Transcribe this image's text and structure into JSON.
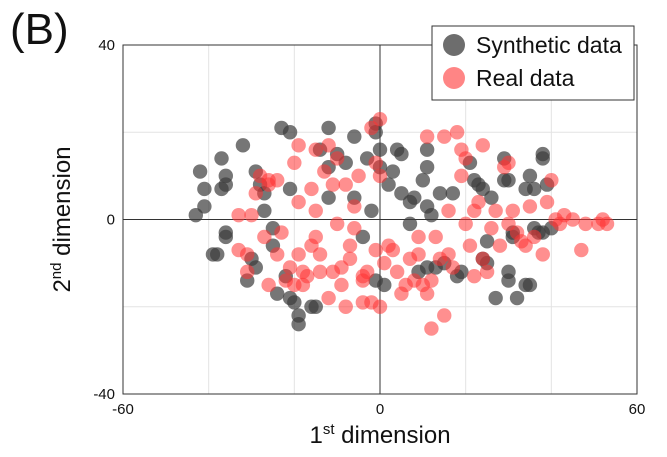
{
  "panel_label": "(B)",
  "chart_data": {
    "type": "scatter",
    "title": "",
    "xlabel": {
      "base": "1",
      "sup": "st",
      "rest": " dimension"
    },
    "ylabel": {
      "base": "2",
      "sup": "nd",
      "rest": " dimension"
    },
    "xlim": [
      -60,
      60
    ],
    "ylim": [
      -40,
      40
    ],
    "xticks": [
      -60,
      0,
      60
    ],
    "yticks": [
      -40,
      0,
      40
    ],
    "grid": true,
    "legend_position": "top-right",
    "series": [
      {
        "name": "Synthetic data",
        "color": "#3c3c3c",
        "opacity": 0.7,
        "points": [
          [
            -42,
            11
          ],
          [
            -41,
            7
          ],
          [
            -43,
            1
          ],
          [
            -41,
            3
          ],
          [
            -39,
            -8
          ],
          [
            -38,
            -8
          ],
          [
            -36,
            -4
          ],
          [
            -36,
            -3
          ],
          [
            -36,
            10
          ],
          [
            -37,
            14
          ],
          [
            -37,
            7
          ],
          [
            -36,
            8
          ],
          [
            -32,
            17
          ],
          [
            -29,
            11
          ],
          [
            -28,
            8
          ],
          [
            -27,
            2
          ],
          [
            -27,
            6
          ],
          [
            -30,
            -9
          ],
          [
            -29,
            -11
          ],
          [
            -31,
            -14
          ],
          [
            -25,
            -2
          ],
          [
            -25,
            -6
          ],
          [
            -24,
            -17
          ],
          [
            -23,
            21
          ],
          [
            -21,
            20
          ],
          [
            -21,
            7
          ],
          [
            -22,
            -13
          ],
          [
            -21,
            -18
          ],
          [
            -20,
            -19
          ],
          [
            -19,
            -22
          ],
          [
            -19,
            -24
          ],
          [
            -16,
            -20
          ],
          [
            -15,
            -20
          ],
          [
            -14,
            16
          ],
          [
            -12,
            21
          ],
          [
            -12,
            12
          ],
          [
            -12,
            5
          ],
          [
            -10,
            15
          ],
          [
            -8,
            13
          ],
          [
            -6,
            19
          ],
          [
            -6,
            5
          ],
          [
            -4,
            -4
          ],
          [
            -3,
            14
          ],
          [
            -2,
            2
          ],
          [
            -1,
            22
          ],
          [
            -1,
            20
          ],
          [
            0,
            12
          ],
          [
            0,
            16
          ],
          [
            -1,
            -14
          ],
          [
            1,
            -15
          ],
          [
            2,
            8
          ],
          [
            3,
            11
          ],
          [
            4,
            16
          ],
          [
            5,
            6
          ],
          [
            5,
            15
          ],
          [
            7,
            4
          ],
          [
            7,
            -1
          ],
          [
            8,
            5
          ],
          [
            9,
            -12
          ],
          [
            10,
            9
          ],
          [
            11,
            16
          ],
          [
            11,
            12
          ],
          [
            11,
            3
          ],
          [
            11,
            -11
          ],
          [
            12,
            1
          ],
          [
            13,
            -11
          ],
          [
            14,
            6
          ],
          [
            15,
            -10
          ],
          [
            17,
            6
          ],
          [
            18,
            -13
          ],
          [
            19,
            -12
          ],
          [
            21,
            13
          ],
          [
            22,
            9
          ],
          [
            23,
            8
          ],
          [
            24,
            7
          ],
          [
            24,
            -9
          ],
          [
            25,
            -10
          ],
          [
            25,
            -5
          ],
          [
            26,
            5
          ],
          [
            27,
            -18
          ],
          [
            29,
            9
          ],
          [
            29,
            14
          ],
          [
            30,
            -12
          ],
          [
            30,
            -14
          ],
          [
            30,
            9
          ],
          [
            31,
            -3
          ],
          [
            31,
            -4
          ],
          [
            32,
            -18
          ],
          [
            34,
            -15
          ],
          [
            34,
            7
          ],
          [
            35,
            10
          ],
          [
            36,
            7
          ],
          [
            36,
            -2
          ],
          [
            37,
            -3
          ],
          [
            38,
            14
          ],
          [
            38,
            15
          ],
          [
            38,
            -3
          ],
          [
            39,
            8
          ],
          [
            40,
            -2
          ],
          [
            35,
            -15
          ]
        ]
      },
      {
        "name": "Real data",
        "color": "#ff3333",
        "opacity": 0.55,
        "points": [
          [
            -33,
            -7
          ],
          [
            -33,
            1
          ],
          [
            -31,
            -8
          ],
          [
            -31,
            -12
          ],
          [
            -30,
            1
          ],
          [
            -29,
            6
          ],
          [
            -28,
            10
          ],
          [
            -27,
            -4
          ],
          [
            -26,
            8
          ],
          [
            -26,
            9
          ],
          [
            -26,
            -15
          ],
          [
            -24,
            9
          ],
          [
            -24,
            -8
          ],
          [
            -23,
            -3
          ],
          [
            -22,
            -14
          ],
          [
            -21,
            -11
          ],
          [
            -20,
            -15
          ],
          [
            -20,
            13
          ],
          [
            -19,
            17
          ],
          [
            -19,
            4
          ],
          [
            -19,
            -8
          ],
          [
            -18,
            -12
          ],
          [
            -18,
            -15
          ],
          [
            -17,
            -13
          ],
          [
            -16,
            -6
          ],
          [
            -16,
            7
          ],
          [
            -15,
            16
          ],
          [
            -15,
            2
          ],
          [
            -15,
            -4
          ],
          [
            -14,
            -12
          ],
          [
            -14,
            -8
          ],
          [
            -13,
            11
          ],
          [
            -12,
            17
          ],
          [
            -12,
            -18
          ],
          [
            -11,
            -12
          ],
          [
            -11,
            8
          ],
          [
            -10,
            14
          ],
          [
            -10,
            -1
          ],
          [
            -9,
            -11
          ],
          [
            -9,
            -15
          ],
          [
            -8,
            8
          ],
          [
            -8,
            -20
          ],
          [
            -7,
            -6
          ],
          [
            -7,
            -9
          ],
          [
            -6,
            3
          ],
          [
            -6,
            -2
          ],
          [
            -5,
            10
          ],
          [
            -4,
            -13
          ],
          [
            -4,
            -19
          ],
          [
            -4,
            -14
          ],
          [
            -3,
            -12
          ],
          [
            -2,
            21
          ],
          [
            -2,
            -19
          ],
          [
            -1,
            13
          ],
          [
            -1,
            -7
          ],
          [
            0,
            23
          ],
          [
            0,
            10
          ],
          [
            0,
            -20
          ],
          [
            1,
            -10
          ],
          [
            2,
            -6
          ],
          [
            3,
            -7
          ],
          [
            4,
            -12
          ],
          [
            5,
            -17
          ],
          [
            6,
            -15
          ],
          [
            7,
            -9
          ],
          [
            8,
            -14
          ],
          [
            9,
            -4
          ],
          [
            9,
            -8
          ],
          [
            10,
            -15
          ],
          [
            11,
            -17
          ],
          [
            11,
            19
          ],
          [
            12,
            -14
          ],
          [
            12,
            -25
          ],
          [
            13,
            -4
          ],
          [
            14,
            -9
          ],
          [
            15,
            -22
          ],
          [
            15,
            19
          ],
          [
            16,
            -8
          ],
          [
            16,
            2
          ],
          [
            17,
            -11
          ],
          [
            18,
            20
          ],
          [
            19,
            16
          ],
          [
            19,
            10
          ],
          [
            20,
            -1
          ],
          [
            20,
            14
          ],
          [
            21,
            -6
          ],
          [
            22,
            2
          ],
          [
            22,
            -13
          ],
          [
            23,
            4
          ],
          [
            24,
            17
          ],
          [
            24,
            -9
          ],
          [
            25,
            -12
          ],
          [
            26,
            -2
          ],
          [
            27,
            2
          ],
          [
            28,
            -6
          ],
          [
            29,
            12
          ],
          [
            30,
            13
          ],
          [
            30,
            -1
          ],
          [
            31,
            2
          ],
          [
            32,
            -3
          ],
          [
            33,
            -5
          ],
          [
            34,
            -6
          ],
          [
            35,
            3
          ],
          [
            36,
            -4
          ],
          [
            38,
            -8
          ],
          [
            39,
            4
          ],
          [
            40,
            9
          ],
          [
            41,
            0
          ],
          [
            42,
            -1
          ],
          [
            43,
            1
          ],
          [
            45,
            0
          ],
          [
            47,
            -7
          ],
          [
            48,
            -1
          ],
          [
            51,
            -1
          ],
          [
            52,
            0
          ],
          [
            53,
            -1
          ]
        ]
      }
    ]
  }
}
